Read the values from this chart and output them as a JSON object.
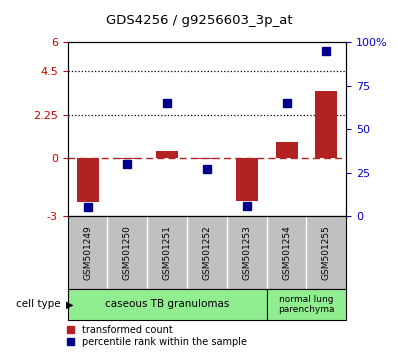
{
  "title": "GDS4256 / g9256603_3p_at",
  "samples": [
    "GSM501249",
    "GSM501250",
    "GSM501251",
    "GSM501252",
    "GSM501253",
    "GSM501254",
    "GSM501255"
  ],
  "transformed_count": [
    -2.3,
    -0.05,
    0.35,
    -0.05,
    -2.2,
    0.85,
    3.5
  ],
  "percentile_rank": [
    5,
    30,
    65,
    27,
    6,
    65,
    95
  ],
  "ylim_left": [
    -3,
    6
  ],
  "ylim_right": [
    0,
    100
  ],
  "yticks_left": [
    -3,
    0,
    2.25,
    4.5,
    6
  ],
  "yticks_right": [
    0,
    25,
    50,
    75,
    100
  ],
  "hlines": [
    4.5,
    2.25
  ],
  "bar_color_red": "#B22222",
  "bar_color_blue": "#00008B",
  "zero_line_color": "#B22222",
  "background_color": "#ffffff",
  "tick_label_color_left": "#CC0000",
  "tick_label_color_right": "#0000CC",
  "cell_type_color": "#90EE90",
  "xlabels_bg": "#C0C0C0",
  "bar_width": 0.55,
  "marker_size": 6
}
